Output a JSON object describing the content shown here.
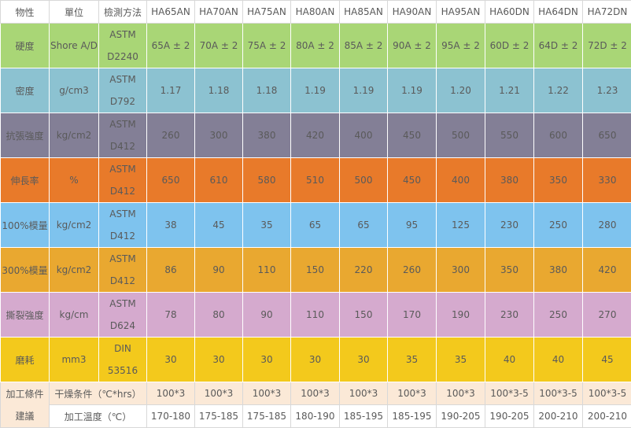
{
  "header": {
    "property": "物性",
    "unit": "單位",
    "method": "檢測方法",
    "grades": [
      "HA65AN",
      "HA70AN",
      "HA75AN",
      "HA80AN",
      "HA85AN",
      "HA90AN",
      "HA95AN",
      "HA60DN",
      "HA64DN",
      "HA72DN"
    ]
  },
  "rows": [
    {
      "property": "硬度",
      "unit": "Shore A/D",
      "method_line1": "ASTM",
      "method_line2": "D2240",
      "color": "#a9d676",
      "values": [
        "65A ± 2",
        "70A ± 2",
        "75A ± 2",
        "80A ± 2",
        "85A ± 2",
        "90A ± 2",
        "95A ± 2",
        "60D ± 2",
        "64D ± 2",
        "72D ± 2"
      ]
    },
    {
      "property": "密度",
      "unit": "g/cm3",
      "method_line1": "ASTM",
      "method_line2": "D792",
      "color": "#8cc2d1",
      "values": [
        "1.17",
        "1.18",
        "1.18",
        "1.19",
        "1.19",
        "1.19",
        "1.20",
        "1.21",
        "1.22",
        "1.23"
      ]
    },
    {
      "property": "抗張強度",
      "unit": "kg/cm2",
      "method_line1": "ASTM",
      "method_line2": "D412",
      "color": "#837f96",
      "values": [
        "260",
        "300",
        "380",
        "420",
        "400",
        "450",
        "500",
        "550",
        "600",
        "650"
      ]
    },
    {
      "property": "伸長率",
      "unit": "%",
      "method_line1": "ASTM",
      "method_line2": "D412",
      "color": "#e87a2a",
      "values": [
        "650",
        "610",
        "580",
        "510",
        "500",
        "450",
        "400",
        "380",
        "350",
        "330"
      ]
    },
    {
      "property": "100%模量",
      "unit": "kg/cm2",
      "method_line1": "ASTM",
      "method_line2": "D412",
      "color": "#7ec3ee",
      "values": [
        "38",
        "45",
        "35",
        "65",
        "65",
        "95",
        "125",
        "230",
        "250",
        "280"
      ]
    },
    {
      "property": "300%模量",
      "unit": "kg/cm2",
      "method_line1": "ASTM",
      "method_line2": "D412",
      "color": "#e9a830",
      "values": [
        "86",
        "90",
        "110",
        "150",
        "220",
        "260",
        "300",
        "350",
        "380",
        "420"
      ]
    },
    {
      "property": "撕裂強度",
      "unit": "kg/cm",
      "method_line1": "ASTM",
      "method_line2": "D624",
      "color": "#d5aace",
      "values": [
        "78",
        "80",
        "90",
        "110",
        "150",
        "170",
        "190",
        "230",
        "250",
        "270"
      ]
    },
    {
      "property": "磨耗",
      "unit": "mm3",
      "method_line1": "DIN",
      "method_line2": "53516",
      "color": "#f3c91c",
      "values": [
        "30",
        "30",
        "30",
        "30",
        "30",
        "35",
        "35",
        "40",
        "40",
        "45"
      ]
    }
  ],
  "processing": {
    "label": "加工條件建議",
    "dry_label": "干燥条件（℃*hrs）",
    "dry_values": [
      "100*3",
      "100*3",
      "100*3",
      "100*3",
      "100*3",
      "100*3",
      "100*3",
      "100*3-5",
      "100*3-5",
      "100*3-5"
    ],
    "temp_label": "加工溫度（℃）",
    "temp_values": [
      "170-180",
      "175-185",
      "175-185",
      "180-190",
      "185-195",
      "185-195",
      "190-205",
      "190-205",
      "200-210",
      "200-210"
    ]
  }
}
